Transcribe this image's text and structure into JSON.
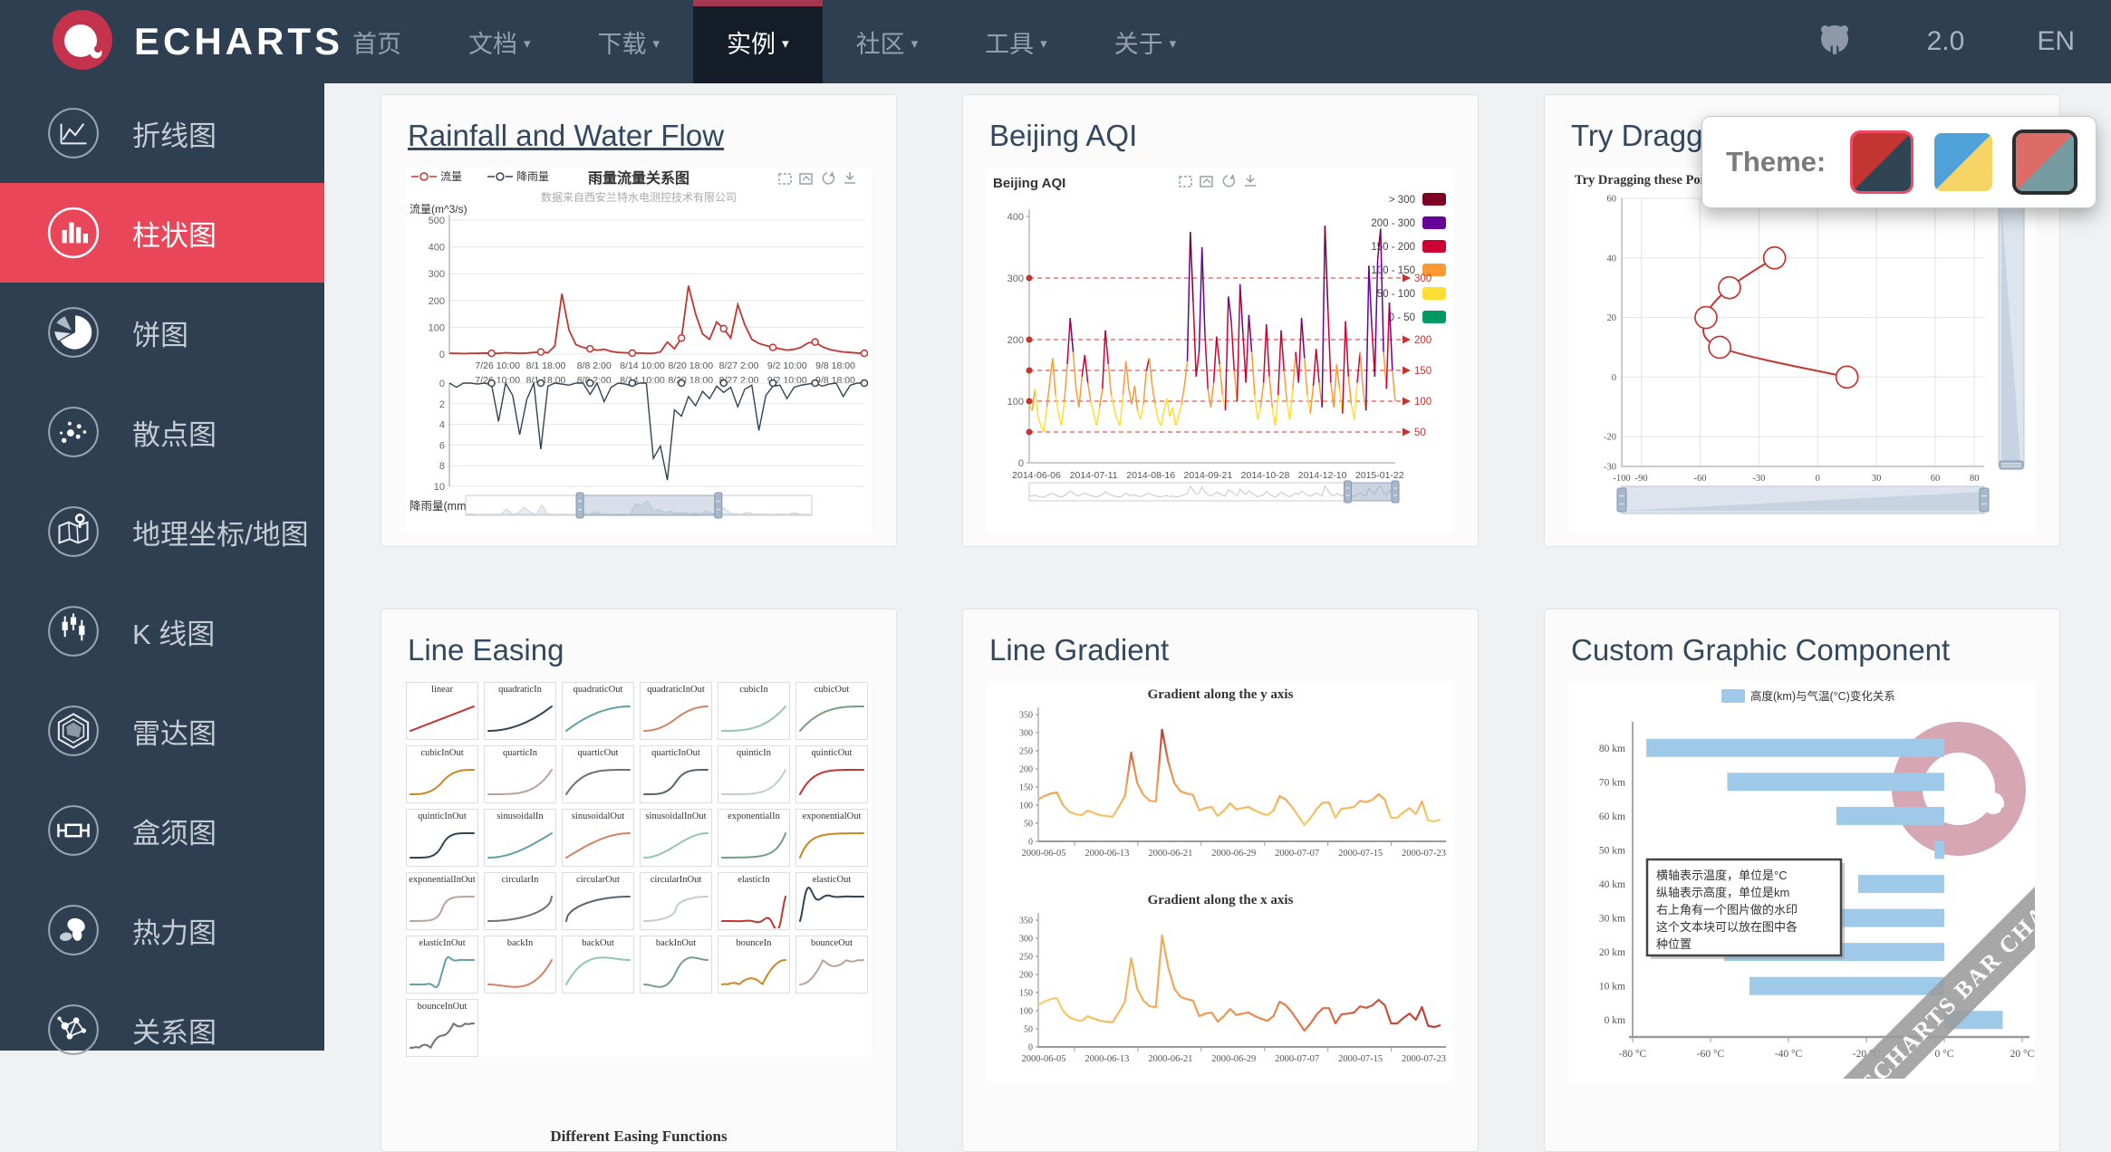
{
  "icons": {
    "caret": "▾"
  },
  "navbar": {
    "logo_text": "ECHARTS",
    "items": [
      {
        "label": "首页",
        "dropdown": false,
        "active": false
      },
      {
        "label": "文档",
        "dropdown": true,
        "active": false
      },
      {
        "label": "下载",
        "dropdown": true,
        "active": false
      },
      {
        "label": "实例",
        "dropdown": true,
        "active": true
      },
      {
        "label": "社区",
        "dropdown": true,
        "active": false
      },
      {
        "label": "工具",
        "dropdown": true,
        "active": false
      },
      {
        "label": "关于",
        "dropdown": true,
        "active": false
      }
    ],
    "version": "2.0",
    "lang": "EN"
  },
  "sidebar": {
    "items": [
      {
        "label": "折线图",
        "icon": "line-chart-icon",
        "active": false
      },
      {
        "label": "柱状图",
        "icon": "bar-chart-icon",
        "active": true
      },
      {
        "label": "饼图",
        "icon": "pie-chart-icon",
        "active": false
      },
      {
        "label": "散点图",
        "icon": "scatter-chart-icon",
        "active": false
      },
      {
        "label": "地理坐标/地图",
        "icon": "map-chart-icon",
        "active": false
      },
      {
        "label": "K 线图",
        "icon": "candlestick-chart-icon",
        "active": false
      },
      {
        "label": "雷达图",
        "icon": "radar-chart-icon",
        "active": false
      },
      {
        "label": "盒须图",
        "icon": "boxplot-chart-icon",
        "active": false
      },
      {
        "label": "热力图",
        "icon": "heatmap-chart-icon",
        "active": false
      },
      {
        "label": "关系图",
        "icon": "graph-chart-icon",
        "active": false
      }
    ]
  },
  "theme_picker": {
    "label": "Theme:",
    "themes": [
      {
        "name": "default",
        "colors": [
          "#c23531",
          "#2f4554"
        ],
        "selected": true
      },
      {
        "name": "light",
        "colors": [
          "#4ea2d9",
          "#f6d465"
        ],
        "selected": false
      },
      {
        "name": "dark",
        "colors": [
          "#dd6b66",
          "#759aa0"
        ],
        "selected": false
      }
    ]
  },
  "cards": [
    {
      "title": "Rainfall and Water Flow"
    },
    {
      "title": "Beijing AQI"
    },
    {
      "title": "Try Dragging these Points"
    },
    {
      "title": "Line Easing"
    },
    {
      "title": "Line Gradient"
    },
    {
      "title": "Custom Graphic Component"
    }
  ],
  "chart_data": [
    {
      "id": "rainfall-water-flow",
      "type": "line",
      "title": "雨量流量关系图",
      "subtitle": "数据来自西安兰特水电测控技术有限公司",
      "legend": [
        "流量",
        "降雨量"
      ],
      "toolbox": [
        "area-zoom",
        "zoom-reset",
        "restore",
        "save-as-image"
      ],
      "x_labels": [
        "7/26 10:00",
        "8/1 18:00",
        "8/8 2:00",
        "8/14 10:00",
        "8/20 18:00",
        "8/27 2:00",
        "9/2 10:00",
        "9/8 18:00"
      ],
      "series": [
        {
          "name": "流量",
          "axis_label": "流量(m^3/s)",
          "color": "#c23531",
          "ylim": [
            0,
            500
          ],
          "yticks": [
            500,
            400,
            300,
            200,
            100,
            0
          ],
          "values": [
            3,
            3,
            2,
            3,
            3,
            4,
            3,
            3,
            5,
            4,
            3,
            4,
            6,
            8,
            5,
            30,
            225,
            90,
            35,
            25,
            20,
            15,
            18,
            10,
            6,
            5,
            4,
            4,
            3,
            3,
            8,
            45,
            20,
            60,
            255,
            150,
            75,
            55,
            120,
            95,
            60,
            185,
            110,
            55,
            40,
            32,
            25,
            20,
            15,
            18,
            25,
            42,
            45,
            28,
            18,
            12,
            8,
            6,
            4,
            3
          ]
        },
        {
          "name": "降雨量",
          "axis_label": "降雨量(mm)",
          "color": "#2f4554",
          "ylim": [
            0,
            10
          ],
          "inverted": true,
          "yticks": [
            0,
            2,
            4,
            6,
            8,
            10
          ],
          "values": [
            0,
            0.4,
            0,
            0,
            0.1,
            0,
            0.2,
            3.7,
            0,
            1.2,
            5.0,
            1.6,
            0,
            6.4,
            0.3,
            0,
            0.1,
            0.2,
            0,
            0,
            1.1,
            0,
            1.8,
            0.4,
            0,
            0.1,
            0.3,
            0,
            0,
            7.3,
            6.1,
            9.4,
            2.6,
            3.2,
            1.3,
            2.2,
            0.8,
            1.5,
            0.3,
            0.9,
            0.4,
            2.3,
            0.6,
            0.2,
            4.6,
            1.2,
            0.3,
            0.2,
            1.5,
            0.4,
            0.2,
            0.1,
            0,
            0.3,
            0.1,
            0,
            1.3,
            0.2,
            0,
            0
          ]
        }
      ],
      "datazoom": {
        "start": 33,
        "end": 73
      }
    },
    {
      "id": "beijing-aqi",
      "type": "line",
      "title": "Beijing AQI",
      "x_labels": [
        "2014-06-06",
        "2014-07-11",
        "2014-08-16",
        "2014-09-21",
        "2014-10-28",
        "2014-12-10",
        "2015-01-22"
      ],
      "yticks": [
        0,
        100,
        200,
        300,
        400
      ],
      "ylim": [
        0,
        400
      ],
      "marklines": [
        50,
        100,
        150,
        200,
        300
      ],
      "pieces": [
        {
          "label": "> 300",
          "color": "#7e0023"
        },
        {
          "label": "200 - 300",
          "color": "#660099"
        },
        {
          "label": "150 - 200",
          "color": "#cc0033"
        },
        {
          "label": "100 - 150",
          "color": "#ff9933"
        },
        {
          "label": "50 - 100",
          "color": "#ffde33"
        },
        {
          "label": "0 - 50",
          "color": "#009966"
        }
      ],
      "values": [
        95,
        85,
        120,
        75,
        60,
        50,
        90,
        130,
        170,
        110,
        80,
        60,
        100,
        160,
        235,
        180,
        120,
        90,
        140,
        175,
        130,
        100,
        80,
        60,
        90,
        120,
        215,
        160,
        110,
        90,
        70,
        60,
        110,
        165,
        120,
        95,
        125,
        85,
        70,
        95,
        150,
        170,
        125,
        95,
        70,
        60,
        85,
        105,
        75,
        90,
        60,
        75,
        95,
        125,
        165,
        375,
        260,
        140,
        180,
        350,
        210,
        120,
        90,
        130,
        205,
        160,
        110,
        85,
        270,
        230,
        150,
        100,
        290,
        210,
        130,
        240,
        180,
        110,
        70,
        90,
        130,
        225,
        140,
        90,
        60,
        110,
        215,
        150,
        100,
        70,
        120,
        180,
        130,
        235,
        170,
        110,
        80,
        125,
        185,
        130,
        90,
        385,
        250,
        130,
        90,
        160,
        120,
        80,
        230,
        140,
        95,
        70,
        130,
        180,
        120,
        85,
        320,
        220,
        140,
        330,
        380,
        180,
        120,
        260,
        150,
        100
      ],
      "datazoom": {
        "start": 87,
        "end": 100
      }
    },
    {
      "id": "try-dragging",
      "type": "line",
      "title": "Try Dragging these Point",
      "points": [
        [
          -22,
          40
        ],
        [
          -45,
          30
        ],
        [
          -57,
          20
        ],
        [
          -50,
          10
        ],
        [
          15,
          0
        ]
      ],
      "xticks": [
        -100,
        -90,
        -60,
        -30,
        0,
        30,
        60,
        80
      ],
      "yticks": [
        60,
        40,
        20,
        0,
        -20,
        -30
      ],
      "xlim": [
        -100,
        85
      ],
      "ylim": [
        -30,
        60
      ],
      "color": "#c23531"
    },
    {
      "id": "line-easing",
      "type": "line-grid",
      "caption": "Different Easing Functions",
      "palette": [
        "#c23531",
        "#2f4554",
        "#61a0a8",
        "#d48265",
        "#91c7ae",
        "#749f83",
        "#ca8622",
        "#bda29a",
        "#6e7074",
        "#546570",
        "#c4ccd3"
      ],
      "functions": [
        "linear",
        "quadraticIn",
        "quadraticOut",
        "quadraticInOut",
        "cubicIn",
        "cubicOut",
        "cubicInOut",
        "quarticIn",
        "quarticOut",
        "quarticInOut",
        "quinticIn",
        "quinticOut",
        "quinticInOut",
        "sinusoidalIn",
        "sinusoidalOut",
        "sinusoidalInOut",
        "exponentialIn",
        "exponentialOut",
        "exponentialInOut",
        "circularIn",
        "circularOut",
        "circularInOut",
        "elasticIn",
        "elasticOut",
        "elasticInOut",
        "backIn",
        "backOut",
        "backInOut",
        "bounceIn",
        "bounceOut",
        "bounceInOut"
      ]
    },
    {
      "id": "line-gradient",
      "type": "line",
      "titles": [
        "Gradient along the y axis",
        "Gradient along the x axis"
      ],
      "yticks": [
        0,
        50,
        100,
        150,
        200,
        250,
        300,
        350
      ],
      "ylim": [
        0,
        350
      ],
      "x_labels": [
        "2000-06-05",
        "2000-06-13",
        "2000-06-21",
        "2000-06-29",
        "2000-07-07",
        "2000-07-15",
        "2000-07-23"
      ],
      "gradient": {
        "low": "#f6d06a",
        "mid": "#e98b4f",
        "high": "#b83c34"
      },
      "values": [
        116,
        125,
        132,
        135,
        100,
        82,
        75,
        72,
        85,
        78,
        72,
        70,
        68,
        95,
        125,
        245,
        160,
        128,
        112,
        110,
        308,
        220,
        160,
        138,
        132,
        128,
        85,
        92,
        95,
        70,
        85,
        105,
        88,
        92,
        95,
        85,
        78,
        72,
        85,
        125,
        115,
        95,
        70,
        45,
        65,
        90,
        107,
        107,
        65,
        90,
        92,
        95,
        112,
        108,
        115,
        130,
        115,
        65,
        65,
        80,
        92,
        75,
        110,
        58,
        55,
        60
      ]
    },
    {
      "id": "custom-graphic",
      "type": "bar",
      "legend": "高度(km)与气温(°C)变化关系",
      "categories": [
        "0 km",
        "10 km",
        "20 km",
        "30 km",
        "40 km",
        "50 km",
        "60 km",
        "70 km",
        "80 km"
      ],
      "values": [
        15,
        -50,
        -56.5,
        -46.5,
        -22.1,
        -2.5,
        -27.7,
        -55.7,
        -76.5
      ],
      "x_labels": [
        "-80 °C",
        "-60 °C",
        "-40 °C",
        "-20 °C",
        "0 °C",
        "20 °C"
      ],
      "xticks": [
        -80,
        -60,
        -40,
        -20,
        0,
        20
      ],
      "xlim": [
        -80,
        20
      ],
      "bar_color": "#9ec9e8",
      "note_lines": [
        "横轴表示温度，单位是°C",
        "纵轴表示高度，单位是km",
        "右上角有一个图片做的水印",
        "这个文本块可以放在图中各",
        "种位置"
      ],
      "watermark": "ECHARTS BAR CHART"
    }
  ]
}
